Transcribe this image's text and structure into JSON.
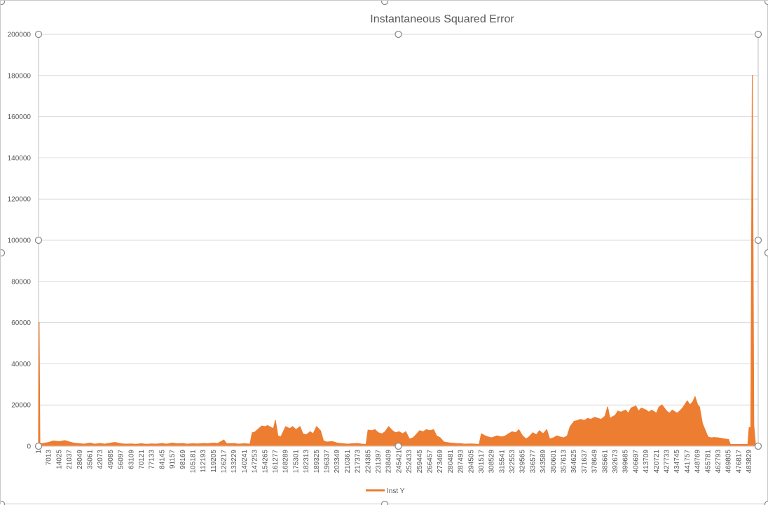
{
  "chart_data": {
    "type": "area",
    "title": "Instantaneous Squared Error",
    "xlabel": "",
    "ylabel": "",
    "ylim": [
      0,
      200000
    ],
    "y_ticks": [
      0,
      20000,
      40000,
      60000,
      80000,
      100000,
      120000,
      140000,
      160000,
      180000,
      200000
    ],
    "x_range": [
      1,
      490000
    ],
    "x_tick_labels": [
      "1",
      "7013",
      "14025",
      "21037",
      "28049",
      "35061",
      "42073",
      "49085",
      "56097",
      "63109",
      "70121",
      "77133",
      "84145",
      "91157",
      "98169",
      "105181",
      "112193",
      "119205",
      "126217",
      "133229",
      "140241",
      "147253",
      "154265",
      "161277",
      "168289",
      "175301",
      "182313",
      "189325",
      "196337",
      "203349",
      "210361",
      "217373",
      "224385",
      "231397",
      "238409",
      "245421",
      "252433",
      "259445",
      "266457",
      "273469",
      "280481",
      "287493",
      "294505",
      "301517",
      "308529",
      "315541",
      "322553",
      "329565",
      "336577",
      "343589",
      "350601",
      "357613",
      "364625",
      "371637",
      "378649",
      "385661",
      "392673",
      "399685",
      "406697",
      "413709",
      "420721",
      "427733",
      "434745",
      "441757",
      "448769",
      "455781",
      "462793",
      "469805",
      "476817",
      "483829"
    ],
    "grid": true,
    "legend_position": "bottom",
    "series_color": "#ED7D31",
    "series": [
      {
        "name": "Inst Y",
        "points": [
          [
            1,
            1500
          ],
          [
            400,
            60000
          ],
          [
            900,
            1500
          ],
          [
            2000,
            1200
          ],
          [
            7013,
            1800
          ],
          [
            10000,
            2500
          ],
          [
            14025,
            2200
          ],
          [
            18000,
            2700
          ],
          [
            21037,
            2000
          ],
          [
            24000,
            1500
          ],
          [
            28049,
            1200
          ],
          [
            31000,
            1000
          ],
          [
            35061,
            1500
          ],
          [
            38000,
            1000
          ],
          [
            42073,
            1300
          ],
          [
            45000,
            1000
          ],
          [
            49085,
            1500
          ],
          [
            52000,
            1800
          ],
          [
            56097,
            1200
          ],
          [
            59000,
            1000
          ],
          [
            63109,
            1100
          ],
          [
            66000,
            900
          ],
          [
            70121,
            1200
          ],
          [
            73000,
            900
          ],
          [
            77133,
            1100
          ],
          [
            80000,
            1000
          ],
          [
            84145,
            1300
          ],
          [
            87000,
            1000
          ],
          [
            91157,
            1500
          ],
          [
            94000,
            1200
          ],
          [
            98169,
            1300
          ],
          [
            101000,
            1000
          ],
          [
            105181,
            1200
          ],
          [
            108000,
            1100
          ],
          [
            112193,
            1300
          ],
          [
            115000,
            1200
          ],
          [
            119205,
            1500
          ],
          [
            122000,
            1300
          ],
          [
            126217,
            3000
          ],
          [
            128000,
            1200
          ],
          [
            133229,
            1300
          ],
          [
            136000,
            1000
          ],
          [
            140241,
            1200
          ],
          [
            144000,
            1000
          ],
          [
            145500,
            6500
          ],
          [
            147253,
            6800
          ],
          [
            150000,
            8500
          ],
          [
            152000,
            9800
          ],
          [
            154265,
            9500
          ],
          [
            156000,
            10000
          ],
          [
            158000,
            9200
          ],
          [
            160000,
            8500
          ],
          [
            161277,
            12500
          ],
          [
            163000,
            5000
          ],
          [
            165000,
            4500
          ],
          [
            168289,
            9500
          ],
          [
            171000,
            8500
          ],
          [
            173000,
            9500
          ],
          [
            175301,
            8000
          ],
          [
            178000,
            9500
          ],
          [
            180000,
            6000
          ],
          [
            182313,
            5500
          ],
          [
            185000,
            7000
          ],
          [
            187000,
            6000
          ],
          [
            189325,
            9500
          ],
          [
            192000,
            7500
          ],
          [
            194000,
            2500
          ],
          [
            196337,
            2000
          ],
          [
            200000,
            2200
          ],
          [
            203349,
            1500
          ],
          [
            207000,
            1200
          ],
          [
            210361,
            1000
          ],
          [
            214000,
            1200
          ],
          [
            217373,
            1300
          ],
          [
            220000,
            1000
          ],
          [
            223000,
            800
          ],
          [
            224385,
            7800
          ],
          [
            227000,
            7500
          ],
          [
            229000,
            8000
          ],
          [
            231397,
            6500
          ],
          [
            234000,
            6000
          ],
          [
            236000,
            7000
          ],
          [
            238409,
            9500
          ],
          [
            241000,
            7500
          ],
          [
            243000,
            6500
          ],
          [
            245421,
            7000
          ],
          [
            248000,
            6000
          ],
          [
            250000,
            7000
          ],
          [
            252433,
            3500
          ],
          [
            255000,
            4000
          ],
          [
            257000,
            5500
          ],
          [
            259445,
            7500
          ],
          [
            262000,
            7000
          ],
          [
            264000,
            8000
          ],
          [
            266457,
            7500
          ],
          [
            269000,
            8000
          ],
          [
            271000,
            5000
          ],
          [
            273469,
            4000
          ],
          [
            276000,
            2000
          ],
          [
            280481,
            1500
          ],
          [
            284000,
            1300
          ],
          [
            287493,
            1200
          ],
          [
            290000,
            1000
          ],
          [
            294505,
            1100
          ],
          [
            297000,
            1000
          ],
          [
            300000,
            800
          ],
          [
            301517,
            6000
          ],
          [
            304000,
            5000
          ],
          [
            306000,
            4500
          ],
          [
            308529,
            4000
          ],
          [
            312000,
            5000
          ],
          [
            315541,
            4500
          ],
          [
            318000,
            5000
          ],
          [
            320000,
            6000
          ],
          [
            322553,
            7000
          ],
          [
            325000,
            6500
          ],
          [
            327000,
            8000
          ],
          [
            329565,
            5000
          ],
          [
            332000,
            3500
          ],
          [
            334000,
            4500
          ],
          [
            336577,
            6500
          ],
          [
            339000,
            5500
          ],
          [
            341000,
            7500
          ],
          [
            343589,
            6000
          ],
          [
            346000,
            8000
          ],
          [
            348000,
            3500
          ],
          [
            350601,
            4000
          ],
          [
            353000,
            5000
          ],
          [
            355000,
            4500
          ],
          [
            357613,
            4000
          ],
          [
            360000,
            5000
          ],
          [
            362000,
            9500
          ],
          [
            364625,
            12000
          ],
          [
            367000,
            12500
          ],
          [
            369000,
            13000
          ],
          [
            371637,
            12500
          ],
          [
            374000,
            13500
          ],
          [
            376000,
            13000
          ],
          [
            378649,
            14000
          ],
          [
            381000,
            13500
          ],
          [
            383000,
            13000
          ],
          [
            385661,
            14500
          ],
          [
            387500,
            19000
          ],
          [
            389000,
            13500
          ],
          [
            392673,
            15000
          ],
          [
            394500,
            17000
          ],
          [
            396500,
            16500
          ],
          [
            399685,
            17500
          ],
          [
            401500,
            16000
          ],
          [
            403500,
            18500
          ],
          [
            406697,
            19500
          ],
          [
            408500,
            17000
          ],
          [
            410500,
            18500
          ],
          [
            413709,
            17500
          ],
          [
            415500,
            16500
          ],
          [
            417500,
            17500
          ],
          [
            420721,
            16000
          ],
          [
            422500,
            19000
          ],
          [
            424500,
            20000
          ],
          [
            427733,
            17000
          ],
          [
            429500,
            16000
          ],
          [
            431500,
            17500
          ],
          [
            434745,
            16000
          ],
          [
            436500,
            17000
          ],
          [
            438500,
            18500
          ],
          [
            441757,
            22000
          ],
          [
            443500,
            20000
          ],
          [
            445500,
            21500
          ],
          [
            447000,
            24000
          ],
          [
            448769,
            20000
          ],
          [
            450000,
            19000
          ],
          [
            452000,
            11000
          ],
          [
            455781,
            4500
          ],
          [
            458000,
            4000
          ],
          [
            460000,
            4200
          ],
          [
            462793,
            4000
          ],
          [
            465000,
            3800
          ],
          [
            467000,
            3500
          ],
          [
            469805,
            3200
          ],
          [
            471000,
            900
          ],
          [
            473000,
            800
          ],
          [
            476817,
            800
          ],
          [
            480000,
            800
          ],
          [
            483000,
            800
          ],
          [
            483829,
            9000
          ],
          [
            485000,
            9000
          ],
          [
            486000,
            180000
          ],
          [
            487000,
            10000
          ],
          [
            488000,
            2000
          ]
        ]
      }
    ]
  }
}
